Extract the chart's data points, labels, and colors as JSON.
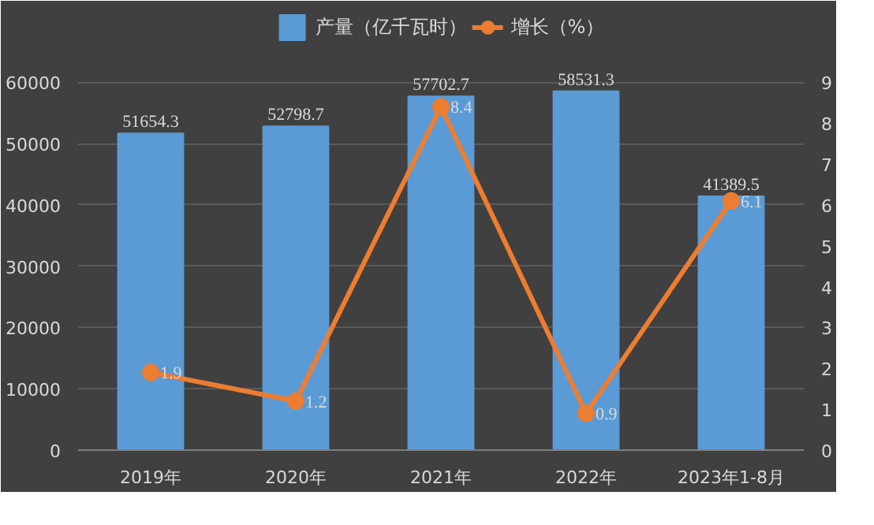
{
  "chart_data": {
    "type": "bar",
    "categories": [
      "2019年",
      "2020年",
      "2021年",
      "2022年",
      "2023年1-8月"
    ],
    "series": [
      {
        "name": "产量（亿千瓦时）",
        "color": "#5b9bd5",
        "values": [
          51654.3,
          52798.7,
          57702.7,
          58531.3,
          41389.5
        ]
      },
      {
        "name": "增长（%）",
        "type": "line",
        "axis": "y2",
        "color": "#ed7d31",
        "values": [
          1.9,
          1.2,
          8.4,
          0.9,
          6.1
        ]
      }
    ],
    "ylim": [
      0,
      72000
    ],
    "yticks": [
      0,
      10000,
      20000,
      30000,
      40000,
      50000,
      60000
    ],
    "y2lim": [
      0,
      10.8
    ],
    "y2ticks": [
      0,
      1,
      2,
      3,
      4,
      5,
      6,
      7,
      8,
      9
    ],
    "data_labels": true,
    "grid": "y",
    "legend": "top",
    "marker": "circle",
    "line_style": "solid"
  }
}
